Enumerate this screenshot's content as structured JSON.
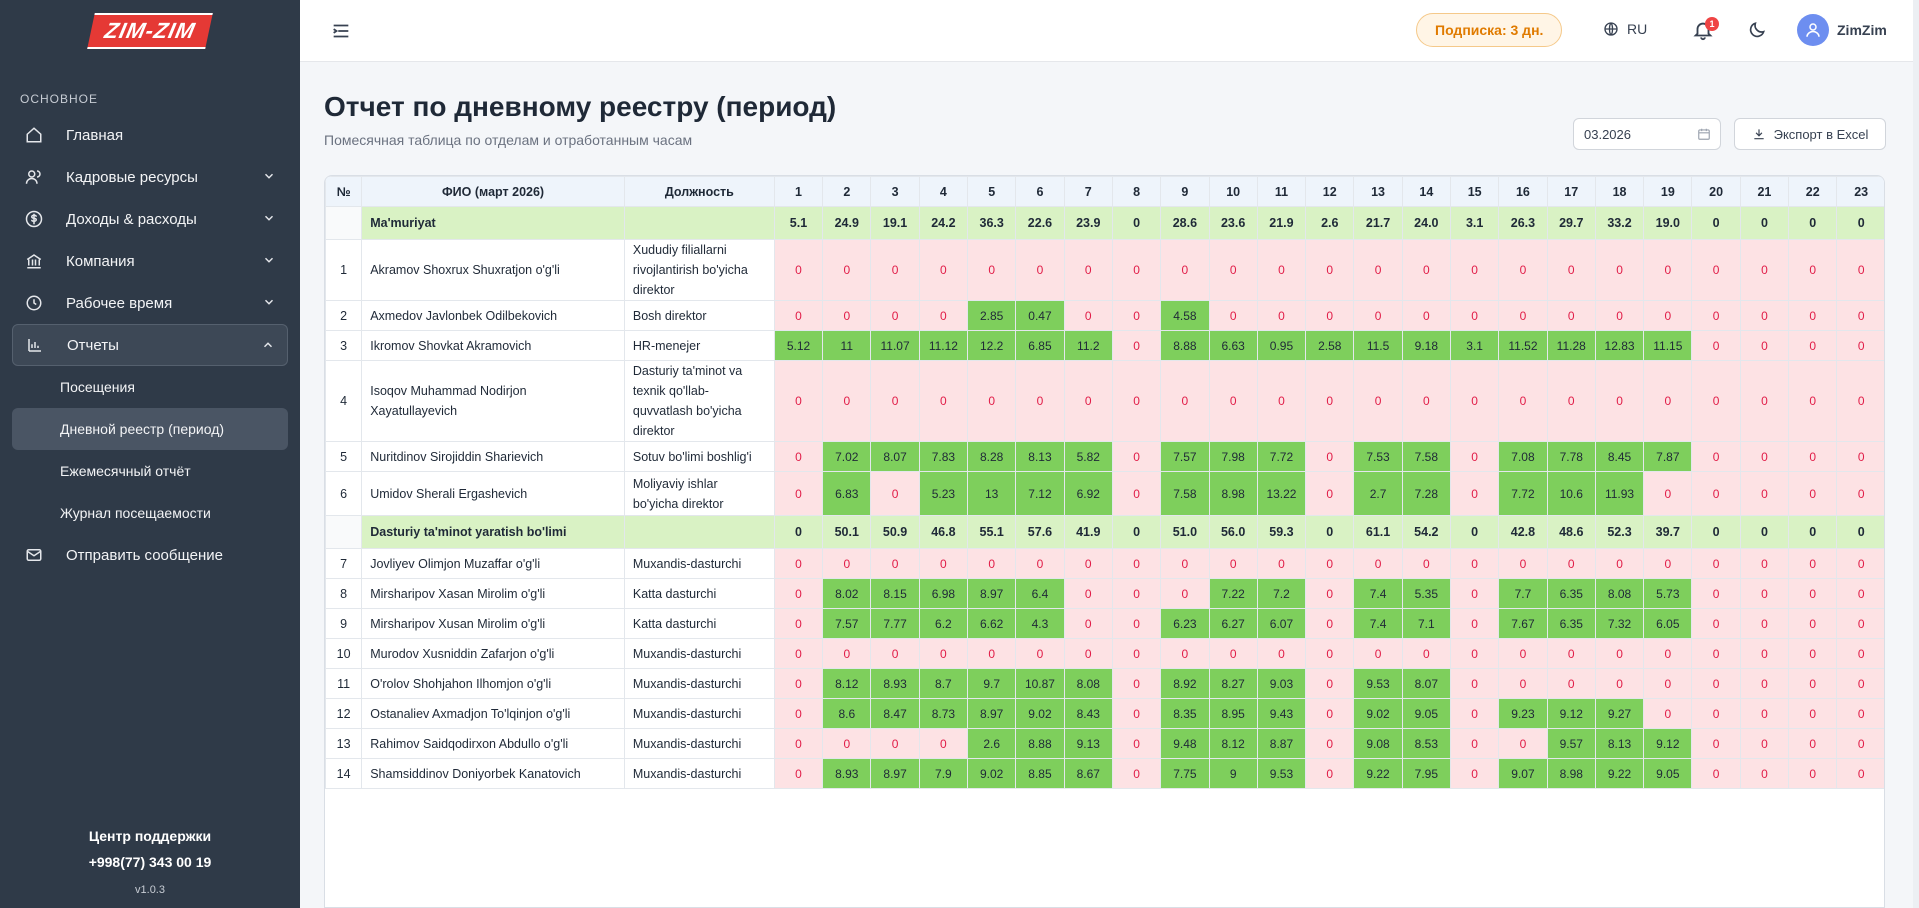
{
  "app": {
    "logo": "ZIM-ZIM"
  },
  "sidebar": {
    "section": "ОСНОВНОЕ",
    "items": [
      {
        "label": "Главная",
        "icon": "home-icon"
      },
      {
        "label": "Кадровые ресурсы",
        "icon": "users-icon"
      },
      {
        "label": "Доходы & расходы",
        "icon": "dollar-icon"
      },
      {
        "label": "Компания",
        "icon": "bank-icon"
      },
      {
        "label": "Рабочее время",
        "icon": "clock-icon"
      },
      {
        "label": "Отчеты",
        "icon": "bar-chart-icon"
      }
    ],
    "subitems": [
      "Посещения",
      "Дневной реестр (период)",
      "Ежемесячный отчёт",
      "Журнал посещаемости"
    ],
    "send_message": "Отправить сообщение",
    "support_title": "Центр поддержки",
    "support_phone": "+998(77) 343 00 19",
    "version": "v1.0.3"
  },
  "topbar": {
    "subscription": "Подписка: 3 дн.",
    "language": "RU",
    "notifications_count": "1",
    "username": "ZimZim"
  },
  "page": {
    "title": "Отчет по дневному реестру (период)",
    "subtitle": "Помесячная таблица по отделам и отработанным часам",
    "date_value": "03.2026",
    "export_label": "Экспорт в Excel"
  },
  "table": {
    "headers": {
      "num": "№",
      "name": "ФИО (март 2026)",
      "position": "Должность"
    },
    "days": [
      "1",
      "2",
      "3",
      "4",
      "5",
      "6",
      "7",
      "8",
      "9",
      "10",
      "11",
      "12",
      "13",
      "14",
      "15",
      "16",
      "17",
      "18",
      "19",
      "20",
      "21",
      "22",
      "23"
    ],
    "rows": [
      {
        "type": "group",
        "name": "Ma'muriyat",
        "values": [
          "5.1",
          "24.9",
          "19.1",
          "24.2",
          "36.3",
          "22.6",
          "23.9",
          "0",
          "28.6",
          "23.6",
          "21.9",
          "2.6",
          "21.7",
          "24.0",
          "3.1",
          "26.3",
          "29.7",
          "33.2",
          "19.0",
          "0",
          "0",
          "0",
          "0"
        ]
      },
      {
        "type": "emp",
        "num": "1",
        "name": "Akramov Shoxrux Shuxratjon o'g'li",
        "position": "Xududiy filiallarni rivojlantirish bo'yicha direktor",
        "values": [
          "0",
          "0",
          "0",
          "0",
          "0",
          "0",
          "0",
          "0",
          "0",
          "0",
          "0",
          "0",
          "0",
          "0",
          "0",
          "0",
          "0",
          "0",
          "0",
          "0",
          "0",
          "0",
          "0"
        ]
      },
      {
        "type": "emp",
        "num": "2",
        "name": "Axmedov Javlonbek Odilbekovich",
        "position": "Bosh direktor",
        "values": [
          "0",
          "0",
          "0",
          "0",
          "2.85",
          "0.47",
          "0",
          "0",
          "4.58",
          "0",
          "0",
          "0",
          "0",
          "0",
          "0",
          "0",
          "0",
          "0",
          "0",
          "0",
          "0",
          "0",
          "0"
        ]
      },
      {
        "type": "emp",
        "num": "3",
        "name": "Ikromov Shovkat Akramovich",
        "position": "HR-menejer",
        "values": [
          "5.12",
          "11",
          "11.07",
          "11.12",
          "12.2",
          "6.85",
          "11.2",
          "0",
          "8.88",
          "6.63",
          "0.95",
          "2.58",
          "11.5",
          "9.18",
          "3.1",
          "11.52",
          "11.28",
          "12.83",
          "11.15",
          "0",
          "0",
          "0",
          "0"
        ]
      },
      {
        "type": "emp",
        "num": "4",
        "name": "Isoqov Muhammad Nodirjon Xayatullayevich",
        "position": "Dasturiy ta'minot va texnik qo'llab-quvvatlash bo'yicha direktor",
        "values": [
          "0",
          "0",
          "0",
          "0",
          "0",
          "0",
          "0",
          "0",
          "0",
          "0",
          "0",
          "0",
          "0",
          "0",
          "0",
          "0",
          "0",
          "0",
          "0",
          "0",
          "0",
          "0",
          "0"
        ]
      },
      {
        "type": "emp",
        "num": "5",
        "name": "Nuritdinov Sirojiddin Sharievich",
        "position": "Sotuv bo'limi boshlig'i",
        "values": [
          "0",
          "7.02",
          "8.07",
          "7.83",
          "8.28",
          "8.13",
          "5.82",
          "0",
          "7.57",
          "7.98",
          "7.72",
          "0",
          "7.53",
          "7.58",
          "0",
          "7.08",
          "7.78",
          "8.45",
          "7.87",
          "0",
          "0",
          "0",
          "0"
        ]
      },
      {
        "type": "emp",
        "num": "6",
        "name": "Umidov Sherali Ergashevich",
        "position": "Moliyaviy ishlar bo'yicha direktor",
        "values": [
          "0",
          "6.83",
          "0",
          "5.23",
          "13",
          "7.12",
          "6.92",
          "0",
          "7.58",
          "8.98",
          "13.22",
          "0",
          "2.7",
          "7.28",
          "0",
          "7.72",
          "10.6",
          "11.93",
          "0",
          "0",
          "0",
          "0",
          "0"
        ]
      },
      {
        "type": "group",
        "name": "Dasturiy ta'minot yaratish bo'limi",
        "values": [
          "0",
          "50.1",
          "50.9",
          "46.8",
          "55.1",
          "57.6",
          "41.9",
          "0",
          "51.0",
          "56.0",
          "59.3",
          "0",
          "61.1",
          "54.2",
          "0",
          "42.8",
          "48.6",
          "52.3",
          "39.7",
          "0",
          "0",
          "0",
          "0"
        ]
      },
      {
        "type": "emp",
        "num": "7",
        "name": "Jovliyev Olimjon Muzaffar o'g'li",
        "position": "Muxandis-dasturchi",
        "values": [
          "0",
          "0",
          "0",
          "0",
          "0",
          "0",
          "0",
          "0",
          "0",
          "0",
          "0",
          "0",
          "0",
          "0",
          "0",
          "0",
          "0",
          "0",
          "0",
          "0",
          "0",
          "0",
          "0"
        ]
      },
      {
        "type": "emp",
        "num": "8",
        "name": "Mirsharipov Xasan Mirolim o'g'li",
        "position": "Katta dasturchi",
        "values": [
          "0",
          "8.02",
          "8.15",
          "6.98",
          "8.97",
          "6.4",
          "0",
          "0",
          "0",
          "7.22",
          "7.2",
          "0",
          "7.4",
          "5.35",
          "0",
          "7.7",
          "6.35",
          "8.08",
          "5.73",
          "0",
          "0",
          "0",
          "0"
        ]
      },
      {
        "type": "emp",
        "num": "9",
        "name": "Mirsharipov Xusan Mirolim o'g'li",
        "position": "Katta dasturchi",
        "values": [
          "0",
          "7.57",
          "7.77",
          "6.2",
          "6.62",
          "4.3",
          "0",
          "0",
          "6.23",
          "6.27",
          "6.07",
          "0",
          "7.4",
          "7.1",
          "0",
          "7.67",
          "6.35",
          "7.32",
          "6.05",
          "0",
          "0",
          "0",
          "0"
        ]
      },
      {
        "type": "emp",
        "num": "10",
        "name": "Murodov Xusniddin Zafarjon o'g'li",
        "position": "Muxandis-dasturchi",
        "values": [
          "0",
          "0",
          "0",
          "0",
          "0",
          "0",
          "0",
          "0",
          "0",
          "0",
          "0",
          "0",
          "0",
          "0",
          "0",
          "0",
          "0",
          "0",
          "0",
          "0",
          "0",
          "0",
          "0"
        ]
      },
      {
        "type": "emp",
        "num": "11",
        "name": "O'rolov Shohjahon Ilhomjon o'g'li",
        "position": "Muxandis-dasturchi",
        "values": [
          "0",
          "8.12",
          "8.93",
          "8.7",
          "9.7",
          "10.87",
          "8.08",
          "0",
          "8.92",
          "8.27",
          "9.03",
          "0",
          "9.53",
          "8.07",
          "0",
          "0",
          "0",
          "0",
          "0",
          "0",
          "0",
          "0",
          "0"
        ]
      },
      {
        "type": "emp",
        "num": "12",
        "name": "Ostanaliev Axmadjon To'lqinjon o'g'li",
        "position": "Muxandis-dasturchi",
        "values": [
          "0",
          "8.6",
          "8.47",
          "8.73",
          "8.97",
          "9.02",
          "8.43",
          "0",
          "8.35",
          "8.95",
          "9.43",
          "0",
          "9.02",
          "9.05",
          "0",
          "9.23",
          "9.12",
          "9.27",
          "0",
          "0",
          "0",
          "0",
          "0"
        ]
      },
      {
        "type": "emp",
        "num": "13",
        "name": "Rahimov Saidqodirxon Abdullo o'g'li",
        "position": "Muxandis-dasturchi",
        "values": [
          "0",
          "0",
          "0",
          "0",
          "2.6",
          "8.88",
          "9.13",
          "0",
          "9.48",
          "8.12",
          "8.87",
          "0",
          "9.08",
          "8.53",
          "0",
          "0",
          "9.57",
          "8.13",
          "9.12",
          "0",
          "0",
          "0",
          "0"
        ]
      },
      {
        "type": "emp",
        "num": "14",
        "name": "Shamsiddinov Doniyorbek Kanatovich",
        "position": "Muxandis-dasturchi",
        "values": [
          "0",
          "8.93",
          "8.97",
          "7.9",
          "9.02",
          "8.85",
          "8.67",
          "0",
          "7.75",
          "9",
          "9.53",
          "0",
          "9.22",
          "7.95",
          "0",
          "9.07",
          "8.98",
          "9.22",
          "9.05",
          "0",
          "0",
          "0",
          "0"
        ]
      }
    ]
  }
}
